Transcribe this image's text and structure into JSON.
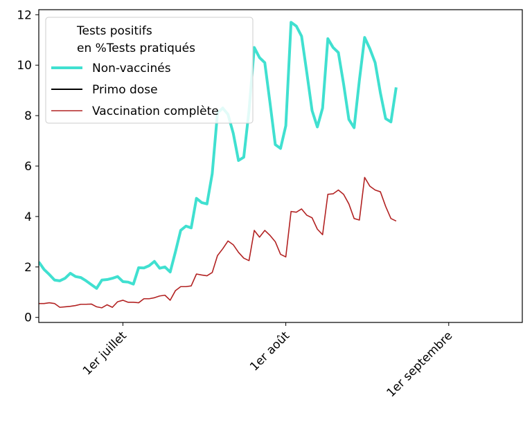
{
  "chart_data": {
    "type": "line",
    "title": "",
    "xlabel": "",
    "ylabel": "",
    "x_start": "2021-06-15",
    "x_end": "2021-09-15",
    "xlim": [
      "2021-06-15",
      "2021-09-15"
    ],
    "ylim": [
      -0.2,
      12.2
    ],
    "yticks": [
      0,
      2,
      4,
      6,
      8,
      10,
      12
    ],
    "xticks": [
      {
        "date": "2021-07-01",
        "label": "1er juillet"
      },
      {
        "date": "2021-08-01",
        "label": "1er août"
      },
      {
        "date": "2021-09-01",
        "label": "1er septembre"
      }
    ],
    "grid": false,
    "legend": {
      "placement": "top-left",
      "title": "Tests positifs\nen %Tests pratiqués",
      "entries": [
        "Non-vaccinés",
        "Primo dose",
        "Vaccination complète"
      ]
    },
    "series": [
      {
        "name": "Non-vaccinés",
        "color": "#40e0d0",
        "width": 4,
        "start": "2021-06-15",
        "values": [
          2.2,
          1.9,
          1.7,
          1.48,
          1.45,
          1.55,
          1.75,
          1.62,
          1.58,
          1.45,
          1.3,
          1.15,
          1.48,
          1.5,
          1.55,
          1.62,
          1.42,
          1.4,
          1.32,
          1.97,
          1.96,
          2.05,
          2.22,
          1.95,
          2.0,
          1.8,
          2.6,
          3.45,
          3.62,
          3.55,
          4.72,
          4.55,
          4.5,
          5.7,
          8.1,
          8.3,
          8.05,
          7.3,
          6.22,
          6.35,
          8.2,
          10.7,
          10.3,
          10.1,
          8.5,
          6.85,
          6.7,
          7.6,
          11.7,
          11.55,
          11.15,
          9.7,
          8.2,
          7.55,
          8.3,
          11.05,
          10.7,
          10.5,
          9.25,
          7.85,
          7.52,
          9.4,
          11.1,
          10.65,
          10.1,
          8.9,
          7.88,
          7.75,
          9.12
        ]
      },
      {
        "name": "Primo dose",
        "color": "#000000",
        "width": 2,
        "start": "2021-06-15",
        "values": []
      },
      {
        "name": "Vaccination complète",
        "color": "#b22222",
        "width": 1.6,
        "start": "2021-06-15",
        "values": [
          0.55,
          0.55,
          0.58,
          0.55,
          0.4,
          0.42,
          0.44,
          0.47,
          0.52,
          0.52,
          0.53,
          0.42,
          0.38,
          0.5,
          0.4,
          0.62,
          0.68,
          0.6,
          0.6,
          0.58,
          0.74,
          0.74,
          0.78,
          0.85,
          0.88,
          0.68,
          1.06,
          1.22,
          1.22,
          1.25,
          1.72,
          1.68,
          1.65,
          1.78,
          2.45,
          2.72,
          3.03,
          2.88,
          2.58,
          2.35,
          2.25,
          3.45,
          3.18,
          3.45,
          3.25,
          3.0,
          2.5,
          2.4,
          4.2,
          4.17,
          4.3,
          4.05,
          3.95,
          3.5,
          3.28,
          4.88,
          4.9,
          5.05,
          4.88,
          4.5,
          3.92,
          3.86,
          5.55,
          5.2,
          5.05,
          4.98,
          4.4,
          3.92,
          3.82
        ]
      }
    ]
  }
}
